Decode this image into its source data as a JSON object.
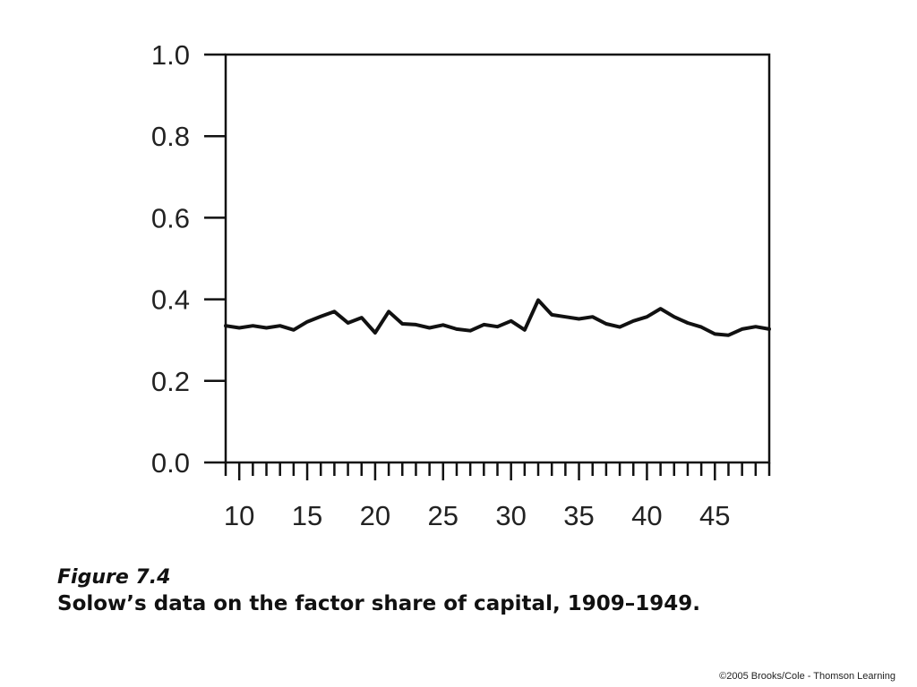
{
  "chart_data": {
    "type": "line",
    "title": "",
    "xlabel": "",
    "ylabel": "",
    "xlim": [
      1909,
      1949
    ],
    "ylim": [
      0.0,
      1.0
    ],
    "y_ticks": [
      "0.0",
      "0.2",
      "0.4",
      "0.6",
      "0.8",
      "1.0"
    ],
    "y_tick_values": [
      0.0,
      0.2,
      0.4,
      0.6,
      0.8,
      1.0
    ],
    "x_ticks": [
      "10",
      "15",
      "20",
      "25",
      "30",
      "35",
      "40",
      "45"
    ],
    "x_tick_values": [
      1910,
      1915,
      1920,
      1925,
      1930,
      1935,
      1940,
      1945
    ],
    "grid": false,
    "series": [
      {
        "x": [
          1909,
          1910,
          1911,
          1912,
          1913,
          1914,
          1915,
          1916,
          1917,
          1918,
          1919,
          1920,
          1921,
          1922,
          1923,
          1924,
          1925,
          1926,
          1927,
          1928,
          1929,
          1930,
          1931,
          1932,
          1933,
          1934,
          1935,
          1936,
          1937,
          1938,
          1939,
          1940,
          1941,
          1942,
          1943,
          1944,
          1945,
          1946,
          1947,
          1948,
          1949
        ],
        "y": [
          0.335,
          0.33,
          0.335,
          0.33,
          0.335,
          0.325,
          0.345,
          0.358,
          0.37,
          0.342,
          0.355,
          0.318,
          0.37,
          0.34,
          0.338,
          0.33,
          0.337,
          0.327,
          0.323,
          0.338,
          0.333,
          0.347,
          0.325,
          0.398,
          0.362,
          0.357,
          0.352,
          0.357,
          0.34,
          0.332,
          0.347,
          0.357,
          0.377,
          0.357,
          0.342,
          0.332,
          0.315,
          0.312,
          0.327,
          0.333,
          0.327
        ]
      }
    ]
  },
  "caption": {
    "figure_label": "Figure 7.4",
    "title": "Solow’s data on the factor share of capital, 1909–1949."
  },
  "copyright": "©2005 Brooks/Cole - Thomson Learning"
}
